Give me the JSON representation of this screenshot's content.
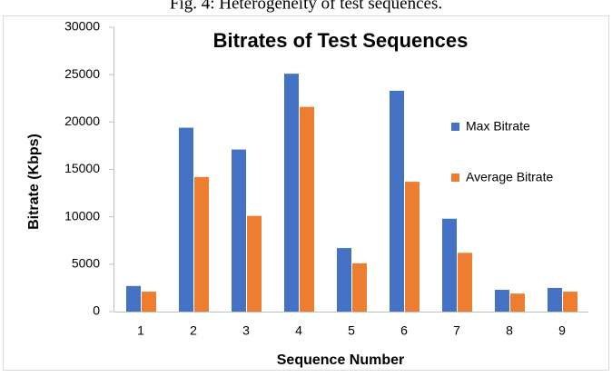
{
  "caption": "Fig. 4: Heterogeneity of test sequences.",
  "chart_data": {
    "type": "bar",
    "title": "Bitrates of Test Sequences",
    "x_label": "Sequence Number",
    "y_label": "Bitrate (Kbps)",
    "categories": [
      "1",
      "2",
      "3",
      "4",
      "5",
      "6",
      "7",
      "8",
      "9"
    ],
    "series": [
      {
        "name": "Max Bitrate",
        "color": "#4472c4",
        "values": [
          2700,
          19400,
          17100,
          25100,
          6700,
          23300,
          9800,
          2300,
          2500
        ]
      },
      {
        "name": "Average Bitrate",
        "color": "#ed7d31",
        "values": [
          2100,
          14200,
          10100,
          21600,
          5100,
          13700,
          6200,
          1900,
          2100
        ]
      }
    ],
    "ylim": [
      0,
      30000
    ],
    "yticks": [
      0,
      5000,
      10000,
      15000,
      20000,
      25000,
      30000
    ],
    "grid": false,
    "legend": "right"
  }
}
